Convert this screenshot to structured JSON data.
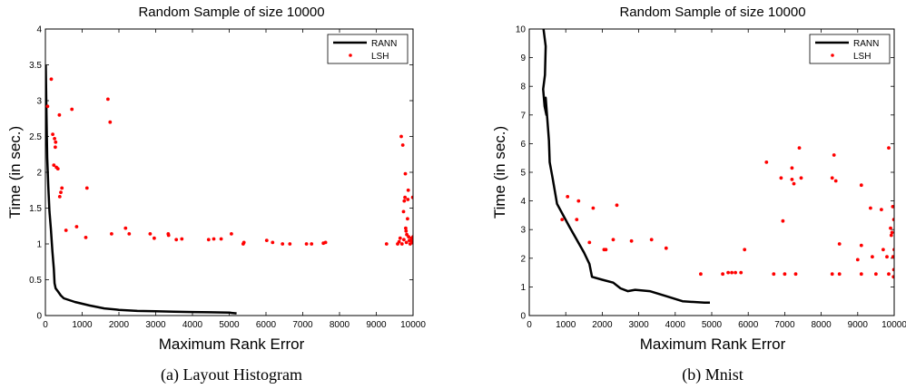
{
  "chart_data": [
    {
      "type": "scatter",
      "title": "Random Sample of size 10000",
      "xlabel": "Maximum Rank Error",
      "ylabel": "Time (in sec.)",
      "caption": "(a) Layout Histogram",
      "xlim": [
        0,
        10000
      ],
      "ylim": [
        0,
        4
      ],
      "xticks": [
        0,
        1000,
        2000,
        3000,
        4000,
        5000,
        6000,
        7000,
        8000,
        9000,
        10000
      ],
      "yticks": [
        0,
        0.5,
        1,
        1.5,
        2,
        2.5,
        3,
        3.5,
        4
      ],
      "xtick_labels": [
        "0",
        "1000",
        "2000",
        "3000",
        "4000",
        "5000",
        "6000",
        "7000",
        "8000",
        "9000",
        "10000"
      ],
      "ytick_labels": [
        "0",
        "0.5",
        "1",
        "1.5",
        "2",
        "2.5",
        "3",
        "3.5",
        "4"
      ],
      "legend_position": "top-right",
      "grid": false,
      "series": [
        {
          "name": "RANN",
          "kind": "line",
          "color": "#000000",
          "points": [
            [
              10,
              3.5
            ],
            [
              30,
              2.8
            ],
            [
              50,
              2.2
            ],
            [
              80,
              1.8
            ],
            [
              110,
              1.45
            ],
            [
              150,
              1.2
            ],
            [
              190,
              0.9
            ],
            [
              230,
              0.65
            ],
            [
              250,
              0.45
            ],
            [
              280,
              0.38
            ],
            [
              350,
              0.33
            ],
            [
              420,
              0.28
            ],
            [
              500,
              0.24
            ],
            [
              800,
              0.19
            ],
            [
              1200,
              0.14
            ],
            [
              1600,
              0.1
            ],
            [
              2000,
              0.08
            ],
            [
              2500,
              0.065
            ],
            [
              3000,
              0.06
            ],
            [
              3500,
              0.055
            ],
            [
              4000,
              0.05
            ],
            [
              4500,
              0.045
            ],
            [
              5000,
              0.04
            ],
            [
              5200,
              0.03
            ]
          ]
        },
        {
          "name": "LSH",
          "kind": "scatter",
          "color": "#ff0000",
          "points": [
            [
              60,
              2.92
            ],
            [
              160,
              3.3
            ],
            [
              200,
              2.53
            ],
            [
              250,
              2.47
            ],
            [
              270,
              2.35
            ],
            [
              280,
              2.42
            ],
            [
              230,
              2.1
            ],
            [
              300,
              2.07
            ],
            [
              340,
              2.05
            ],
            [
              380,
              2.8
            ],
            [
              390,
              1.66
            ],
            [
              420,
              1.72
            ],
            [
              450,
              1.78
            ],
            [
              560,
              1.19
            ],
            [
              720,
              2.88
            ],
            [
              850,
              1.24
            ],
            [
              1100,
              1.09
            ],
            [
              1130,
              1.78
            ],
            [
              1700,
              3.02
            ],
            [
              1760,
              2.7
            ],
            [
              1800,
              1.14
            ],
            [
              2180,
              1.22
            ],
            [
              2280,
              1.14
            ],
            [
              2850,
              1.14
            ],
            [
              2960,
              1.08
            ],
            [
              3340,
              1.14
            ],
            [
              3350,
              1.12
            ],
            [
              3560,
              1.06
            ],
            [
              3710,
              1.07
            ],
            [
              4440,
              1.06
            ],
            [
              4580,
              1.07
            ],
            [
              4780,
              1.07
            ],
            [
              5060,
              1.14
            ],
            [
              5380,
              1.0
            ],
            [
              5400,
              1.02
            ],
            [
              6020,
              1.05
            ],
            [
              6180,
              1.02
            ],
            [
              6450,
              1.0
            ],
            [
              6650,
              1.0
            ],
            [
              7100,
              1.0
            ],
            [
              7240,
              1.0
            ],
            [
              7560,
              1.01
            ],
            [
              7620,
              1.02
            ],
            [
              9280,
              1.0
            ],
            [
              9580,
              1.0
            ],
            [
              9620,
              1.03
            ],
            [
              9650,
              1.08
            ],
            [
              9680,
              2.5
            ],
            [
              9720,
              2.38
            ],
            [
              9740,
              1.45
            ],
            [
              9760,
              1.6
            ],
            [
              9780,
              1.65
            ],
            [
              9790,
              1.98
            ],
            [
              9800,
              1.22
            ],
            [
              9810,
              1.18
            ],
            [
              9830,
              1.13
            ],
            [
              9850,
              1.35
            ],
            [
              9860,
              1.62
            ],
            [
              9870,
              1.75
            ],
            [
              9880,
              1.1
            ],
            [
              9900,
              1.05
            ],
            [
              9920,
              1.0
            ],
            [
              9940,
              1.05
            ],
            [
              9960,
              1.08
            ],
            [
              9980,
              1.02
            ],
            [
              9990,
              1.65
            ],
            [
              10000,
              1.1
            ],
            [
              9700,
              1.0
            ],
            [
              9750,
              1.06
            ],
            [
              9820,
              1.02
            ]
          ]
        }
      ]
    },
    {
      "type": "scatter",
      "title": "Random Sample of size 10000",
      "xlabel": "Maximum Rank Error",
      "ylabel": "Time (in sec.)",
      "caption": "(b) Mnist",
      "xlim": [
        0,
        10000
      ],
      "ylim": [
        0,
        10
      ],
      "xticks": [
        0,
        1000,
        2000,
        3000,
        4000,
        5000,
        6000,
        7000,
        8000,
        9000,
        10000
      ],
      "yticks": [
        0,
        1,
        2,
        3,
        4,
        5,
        6,
        7,
        8,
        9,
        10
      ],
      "xtick_labels": [
        "0",
        "1000",
        "2000",
        "3000",
        "4000",
        "5000",
        "6000",
        "7000",
        "8000",
        "9000",
        "10000"
      ],
      "ytick_labels": [
        "0",
        "1",
        "2",
        "3",
        "4",
        "5",
        "6",
        "7",
        "8",
        "9",
        "10"
      ],
      "legend_position": "top-right",
      "grid": false,
      "series": [
        {
          "name": "RANN",
          "kind": "line",
          "color": "#000000",
          "points": [
            [
              390,
              10.0
            ],
            [
              450,
              9.4
            ],
            [
              430,
              8.4
            ],
            [
              380,
              7.9
            ],
            [
              420,
              7.3
            ],
            [
              470,
              7.0
            ],
            [
              450,
              7.6
            ],
            [
              540,
              6.1
            ],
            [
              560,
              5.35
            ],
            [
              640,
              4.8
            ],
            [
              760,
              3.9
            ],
            [
              1100,
              3.1
            ],
            [
              1500,
              2.2
            ],
            [
              1650,
              1.8
            ],
            [
              1720,
              1.35
            ],
            [
              2000,
              1.25
            ],
            [
              2300,
              1.15
            ],
            [
              2500,
              0.95
            ],
            [
              2700,
              0.85
            ],
            [
              2900,
              0.9
            ],
            [
              3300,
              0.85
            ],
            [
              3700,
              0.7
            ],
            [
              4200,
              0.5
            ],
            [
              4800,
              0.45
            ],
            [
              4950,
              0.45
            ]
          ]
        },
        {
          "name": "LSH",
          "kind": "scatter",
          "color": "#ff0000",
          "points": [
            [
              900,
              3.35
            ],
            [
              1050,
              4.15
            ],
            [
              1300,
              3.35
            ],
            [
              1350,
              4.0
            ],
            [
              1650,
              2.55
            ],
            [
              1750,
              3.75
            ],
            [
              2050,
              2.3
            ],
            [
              2100,
              2.3
            ],
            [
              2300,
              2.65
            ],
            [
              2400,
              3.85
            ],
            [
              2800,
              2.6
            ],
            [
              3350,
              2.65
            ],
            [
              3750,
              2.35
            ],
            [
              4700,
              1.45
            ],
            [
              5300,
              1.45
            ],
            [
              5450,
              1.5
            ],
            [
              5550,
              1.5
            ],
            [
              5650,
              1.5
            ],
            [
              5800,
              1.5
            ],
            [
              5900,
              2.3
            ],
            [
              6500,
              5.35
            ],
            [
              6700,
              1.45
            ],
            [
              6900,
              4.8
            ],
            [
              6950,
              3.3
            ],
            [
              7000,
              1.45
            ],
            [
              7200,
              4.75
            ],
            [
              7200,
              5.15
            ],
            [
              7250,
              4.6
            ],
            [
              7300,
              1.45
            ],
            [
              7400,
              5.85
            ],
            [
              7450,
              4.8
            ],
            [
              8300,
              4.8
            ],
            [
              8350,
              5.6
            ],
            [
              8300,
              1.45
            ],
            [
              8400,
              4.7
            ],
            [
              8500,
              2.5
            ],
            [
              8500,
              1.45
            ],
            [
              9000,
              1.95
            ],
            [
              9100,
              4.55
            ],
            [
              9100,
              2.45
            ],
            [
              9100,
              1.45
            ],
            [
              9350,
              3.75
            ],
            [
              9400,
              2.05
            ],
            [
              9500,
              1.45
            ],
            [
              9650,
              3.7
            ],
            [
              9700,
              2.3
            ],
            [
              9800,
              2.05
            ],
            [
              9850,
              5.85
            ],
            [
              9850,
              1.45
            ],
            [
              9900,
              3.05
            ],
            [
              9920,
              2.8
            ],
            [
              9940,
              2.9
            ],
            [
              9960,
              3.8
            ],
            [
              9970,
              2.05
            ],
            [
              9980,
              1.35
            ],
            [
              9990,
              1.6
            ],
            [
              10000,
              2.3
            ],
            [
              9990,
              3.35
            ]
          ]
        }
      ]
    }
  ]
}
